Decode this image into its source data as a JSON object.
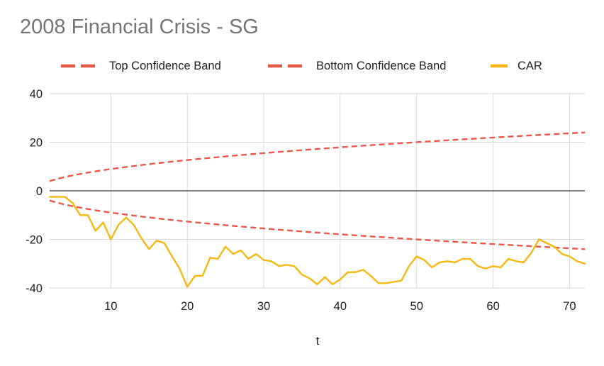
{
  "chart_data": {
    "type": "line",
    "title": "2008 Financial Crisis - SG",
    "xlabel": "t",
    "ylabel": "",
    "xlim": [
      2,
      72
    ],
    "ylim": [
      -40,
      40
    ],
    "x_ticks": [
      10,
      20,
      30,
      40,
      50,
      60,
      70
    ],
    "y_ticks": [
      -40,
      -20,
      0,
      20,
      40
    ],
    "grid": true,
    "legend_position": "top",
    "series": [
      {
        "name": "Top Confidence Band",
        "style": "dashed",
        "color": "#e8594a",
        "formula": "2.83*sqrt(t)",
        "x": [
          2,
          5,
          10,
          15,
          20,
          25,
          30,
          35,
          40,
          45,
          50,
          55,
          60,
          65,
          70,
          72
        ],
        "values": [
          4.0,
          6.3,
          8.9,
          11.0,
          12.7,
          14.2,
          15.5,
          16.7,
          17.9,
          19.0,
          20.0,
          21.0,
          21.9,
          22.8,
          23.7,
          24.0
        ]
      },
      {
        "name": "Bottom Confidence Band",
        "style": "dashed",
        "color": "#e8594a",
        "formula": "-2.83*sqrt(t)",
        "x": [
          2,
          5,
          10,
          15,
          20,
          25,
          30,
          35,
          40,
          45,
          50,
          55,
          60,
          65,
          70,
          72
        ],
        "values": [
          -4.0,
          -6.3,
          -8.9,
          -11.0,
          -12.7,
          -14.2,
          -15.5,
          -16.7,
          -17.9,
          -19.0,
          -20.0,
          -21.0,
          -21.9,
          -22.8,
          -23.7,
          -24.0
        ]
      },
      {
        "name": "CAR",
        "style": "solid",
        "color": "#f6b812",
        "x": [
          2,
          3,
          4,
          5,
          6,
          7,
          8,
          9,
          10,
          11,
          12,
          13,
          14,
          15,
          16,
          17,
          18,
          19,
          20,
          21,
          22,
          23,
          24,
          25,
          26,
          27,
          28,
          29,
          30,
          31,
          32,
          33,
          34,
          35,
          36,
          37,
          38,
          39,
          40,
          41,
          42,
          43,
          44,
          45,
          46,
          47,
          48,
          49,
          50,
          51,
          52,
          53,
          54,
          55,
          56,
          57,
          58,
          59,
          60,
          61,
          62,
          63,
          64,
          65,
          66,
          67,
          68,
          69,
          70,
          71,
          72
        ],
        "values": [
          -2.5,
          -2.5,
          -2.5,
          -5,
          -10,
          -10,
          -16.5,
          -13,
          -20,
          -14,
          -11,
          -14,
          -19.5,
          -24,
          -20.5,
          -21.5,
          -27,
          -32,
          -39.5,
          -35,
          -35,
          -27.5,
          -28,
          -23,
          -26,
          -24.5,
          -28,
          -26,
          -28.5,
          -29,
          -31,
          -30.5,
          -31,
          -34.5,
          -36,
          -38.5,
          -35.5,
          -38.5,
          -36.5,
          -33.5,
          -33.5,
          -32.5,
          -35,
          -38,
          -38,
          -37.5,
          -37,
          -31,
          -27,
          -28.5,
          -31.5,
          -29.5,
          -29,
          -29.5,
          -28,
          -28,
          -31,
          -32,
          -31,
          -31.5,
          -28,
          -29,
          -29.5,
          -25.5,
          -20,
          -21.5,
          -23,
          -26,
          -27,
          -29,
          -30
        ]
      }
    ]
  }
}
